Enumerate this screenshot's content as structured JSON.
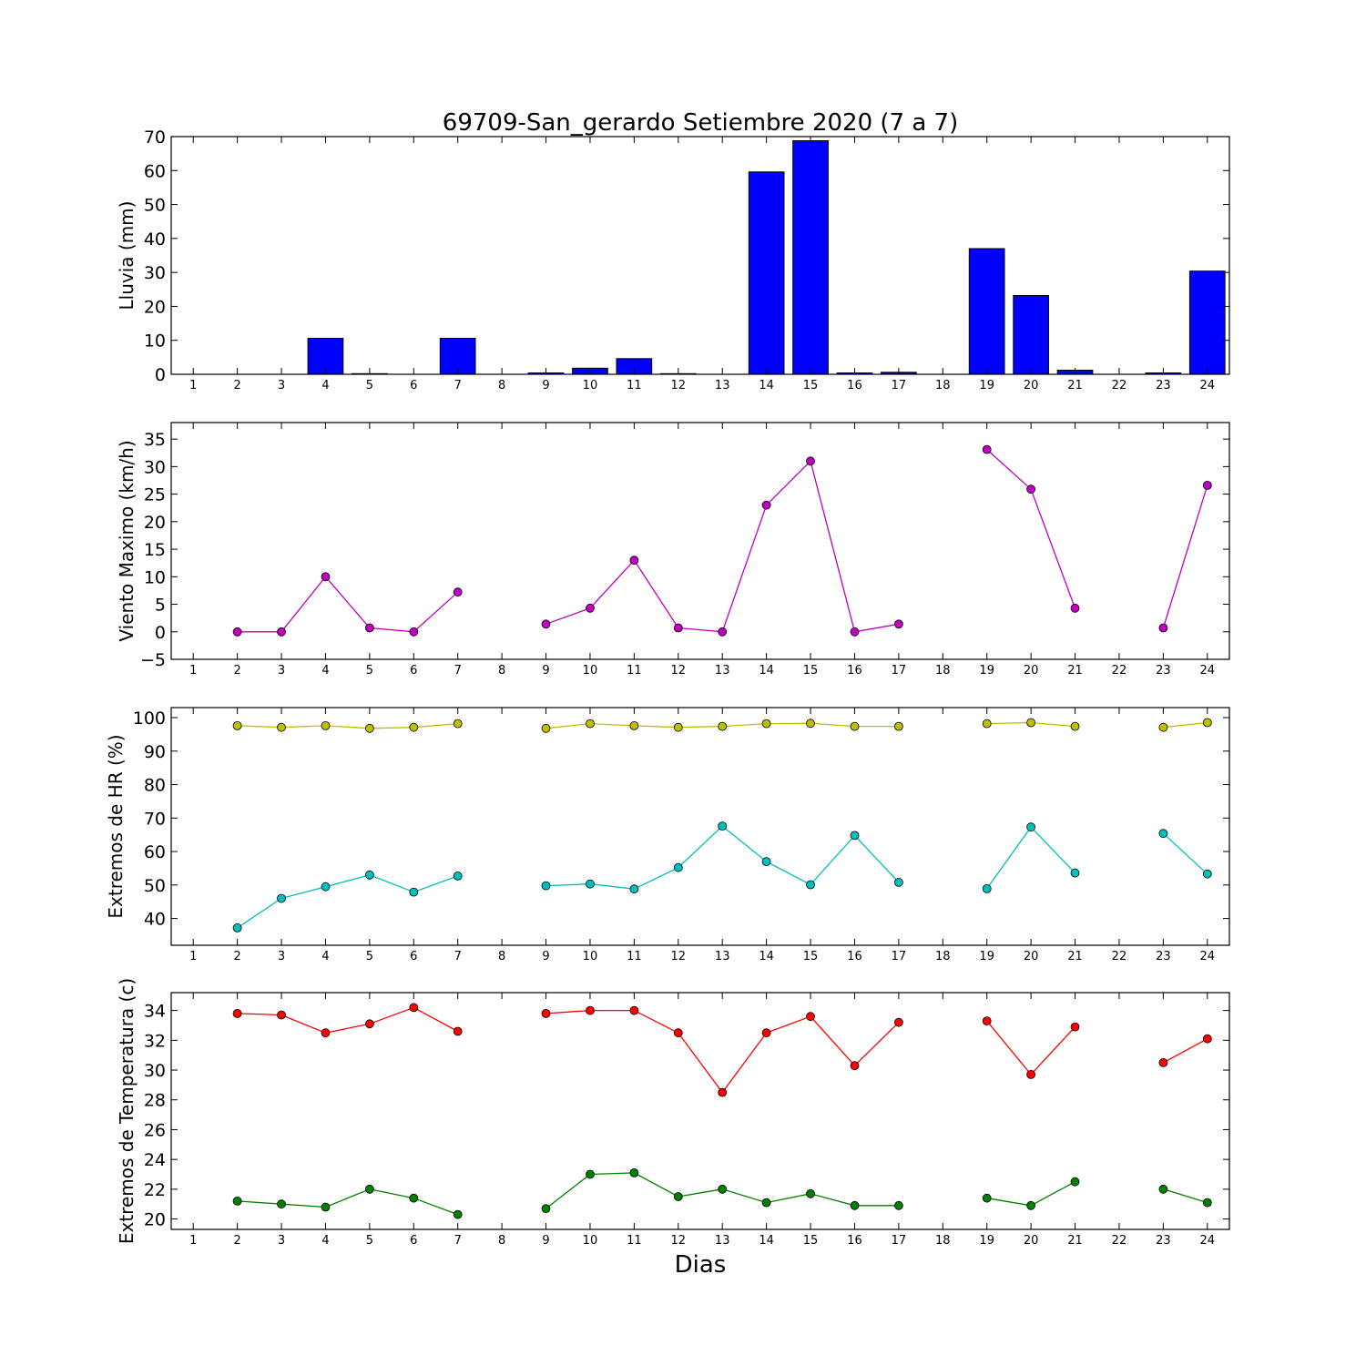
{
  "figure": {
    "title": "69709-San_gerardo Setiembre 2020  (7 a 7)",
    "xlabel": "Dias"
  },
  "chart_data": [
    {
      "type": "bar",
      "ylabel": "Lluvia (mm)",
      "ylim": [
        0,
        70
      ],
      "yticks": [
        0,
        10,
        20,
        30,
        40,
        50,
        60,
        70
      ],
      "xlim": [
        0.5,
        24.5
      ],
      "categories": [
        "1",
        "2",
        "3",
        "4",
        "5",
        "6",
        "7",
        "8",
        "9",
        "10",
        "11",
        "12",
        "13",
        "14",
        "15",
        "16",
        "17",
        "18",
        "19",
        "20",
        "21",
        "22",
        "23",
        "24"
      ],
      "series": [
        {
          "color": "#0000ff",
          "values": [
            null,
            0,
            0,
            10.6,
            0.2,
            0,
            10.6,
            null,
            0.4,
            1.8,
            4.6,
            0.2,
            0,
            59.6,
            68.8,
            0.4,
            0.6,
            null,
            37.0,
            23.2,
            1.2,
            null,
            0.4,
            30.4
          ]
        }
      ]
    },
    {
      "type": "line",
      "ylabel": "Viento Maximo (km/h)",
      "ylim": [
        -5,
        38
      ],
      "yticks": [
        -5,
        0,
        5,
        10,
        15,
        20,
        25,
        30,
        35
      ],
      "xlim": [
        0.5,
        24.5
      ],
      "categories": [
        "1",
        "2",
        "3",
        "4",
        "5",
        "6",
        "7",
        "8",
        "9",
        "10",
        "11",
        "12",
        "13",
        "14",
        "15",
        "16",
        "17",
        "18",
        "19",
        "20",
        "21",
        "22",
        "23",
        "24"
      ],
      "series": [
        {
          "color": "#bf00bf",
          "values": [
            null,
            0,
            0,
            10.0,
            0.7,
            0,
            7.2,
            null,
            1.4,
            4.3,
            13.0,
            0.7,
            0,
            23.0,
            31.0,
            0,
            1.4,
            null,
            33.1,
            25.9,
            4.3,
            null,
            0.7,
            26.6
          ]
        }
      ]
    },
    {
      "type": "line",
      "ylabel": "Extremos de HR (%)",
      "ylim": [
        32,
        103
      ],
      "yticks": [
        40,
        50,
        60,
        70,
        80,
        90,
        100
      ],
      "xlim": [
        0.5,
        24.5
      ],
      "categories": [
        "1",
        "2",
        "3",
        "4",
        "5",
        "6",
        "7",
        "8",
        "9",
        "10",
        "11",
        "12",
        "13",
        "14",
        "15",
        "16",
        "17",
        "18",
        "19",
        "20",
        "21",
        "22",
        "23",
        "24"
      ],
      "series": [
        {
          "color": "#bfbf00",
          "values": [
            null,
            97.6,
            97.1,
            97.6,
            96.8,
            97.1,
            98.2,
            null,
            96.8,
            98.2,
            97.6,
            97.1,
            97.4,
            98.2,
            98.3,
            97.4,
            97.4,
            null,
            98.2,
            98.5,
            97.4,
            null,
            97.1,
            98.5
          ]
        },
        {
          "color": "#00bfbf",
          "values": [
            null,
            37.2,
            46.0,
            49.5,
            53.0,
            47.9,
            52.7,
            null,
            49.8,
            50.3,
            48.8,
            55.2,
            67.6,
            57.0,
            50.1,
            64.8,
            50.8,
            null,
            48.9,
            67.3,
            53.6,
            null,
            65.4,
            53.3
          ]
        }
      ]
    },
    {
      "type": "line",
      "ylabel": "Extremos de Temperatura (c)",
      "ylim": [
        19.3,
        35.2
      ],
      "yticks": [
        20,
        22,
        24,
        26,
        28,
        30,
        32,
        34
      ],
      "xlim": [
        0.5,
        24.5
      ],
      "categories": [
        "1",
        "2",
        "3",
        "4",
        "5",
        "6",
        "7",
        "8",
        "9",
        "10",
        "11",
        "12",
        "13",
        "14",
        "15",
        "16",
        "17",
        "18",
        "19",
        "20",
        "21",
        "22",
        "23",
        "24"
      ],
      "series": [
        {
          "color": "#ff0000",
          "values": [
            null,
            33.8,
            33.7,
            32.5,
            33.1,
            34.2,
            32.6,
            null,
            33.8,
            34.0,
            34.0,
            32.5,
            28.5,
            32.5,
            33.6,
            30.3,
            33.2,
            null,
            33.3,
            29.7,
            32.9,
            null,
            30.5,
            32.1
          ]
        },
        {
          "color": "#008000",
          "values": [
            null,
            21.2,
            21.0,
            20.8,
            22.0,
            21.4,
            20.3,
            null,
            20.7,
            23.0,
            23.1,
            21.5,
            22.0,
            21.1,
            21.7,
            20.9,
            20.9,
            null,
            21.4,
            20.9,
            22.5,
            null,
            22.0,
            21.1
          ]
        }
      ]
    }
  ]
}
